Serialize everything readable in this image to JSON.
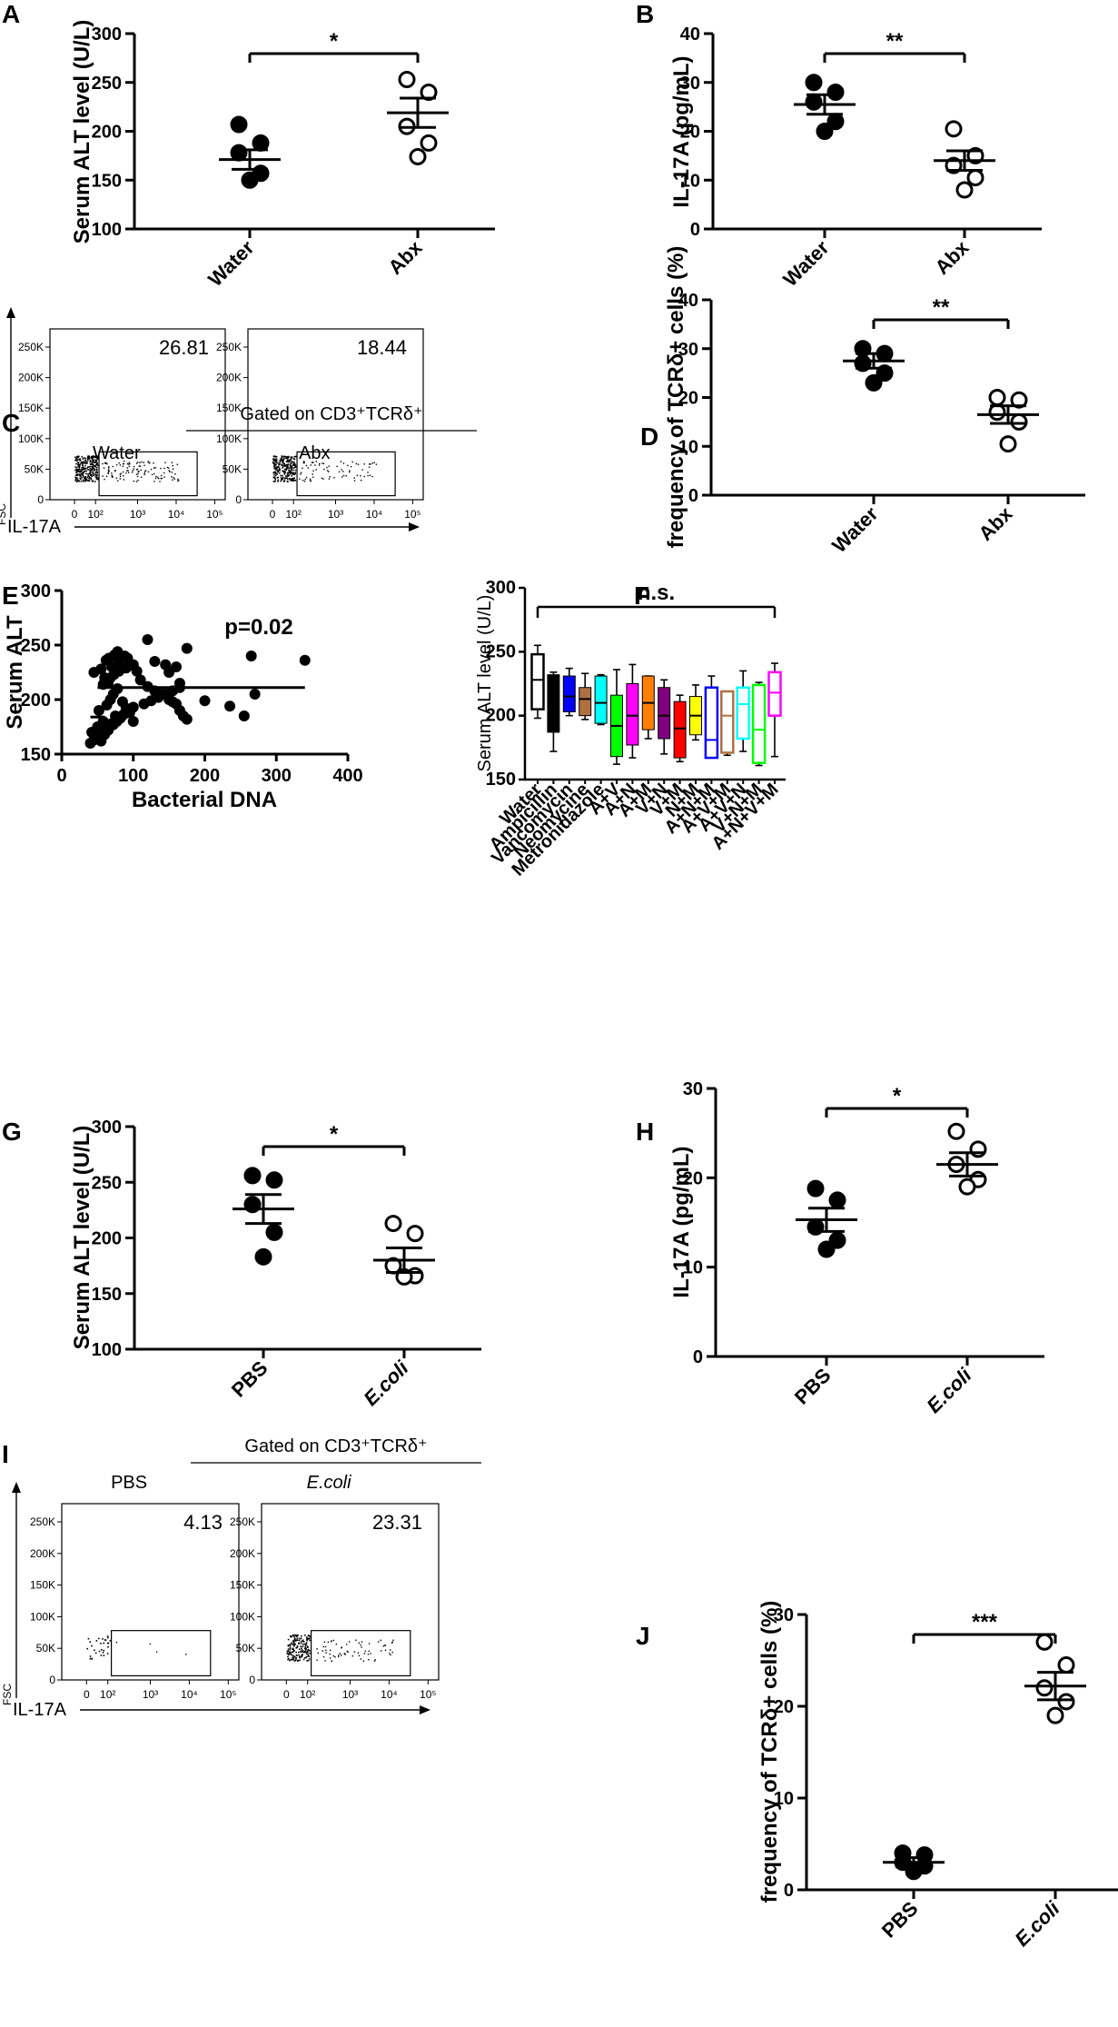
{
  "chart_data": [
    {
      "panel": "A",
      "type": "scatter",
      "ylabel": "Serum ALT level (U/L)",
      "ylim": [
        100,
        300
      ],
      "yticks": [
        100,
        150,
        200,
        250,
        300
      ],
      "categories": [
        "Water",
        "Abx"
      ],
      "significance": "*",
      "groups": [
        {
          "name": "Water",
          "filled": true,
          "points": [
            207,
            188,
            178,
            157,
            150
          ],
          "mean": 171,
          "sem": 10
        },
        {
          "name": "Abx",
          "filled": false,
          "points": [
            253,
            240,
            205,
            188,
            174
          ],
          "mean": 219,
          "sem": 15
        }
      ]
    },
    {
      "panel": "B",
      "type": "scatter",
      "ylabel": "IL-17A (pg/mL)",
      "ylim": [
        0,
        40
      ],
      "yticks": [
        0,
        10,
        20,
        30,
        40
      ],
      "categories": [
        "Water",
        "Abx"
      ],
      "significance": "**",
      "groups": [
        {
          "name": "Water",
          "filled": true,
          "points": [
            30,
            28,
            26,
            22,
            20
          ],
          "mean": 25.5,
          "sem": 2
        },
        {
          "name": "Abx",
          "filled": false,
          "points": [
            20.5,
            15,
            13,
            10.5,
            8
          ],
          "mean": 14,
          "sem": 2
        }
      ]
    },
    {
      "panel": "C",
      "type": "flow",
      "header": "Gated on CD3⁺TCRδ⁺",
      "xlabel": "IL-17A",
      "ylabel": "FSC",
      "yticks": [
        "0",
        "50K",
        "100K",
        "150K",
        "200K",
        "250K"
      ],
      "xticks": [
        "0",
        "10²",
        "10³",
        "10⁴",
        "10⁵"
      ],
      "plots": [
        {
          "name": "Water",
          "value": "26.81"
        },
        {
          "name": "Abx",
          "value": "18.44"
        }
      ]
    },
    {
      "panel": "D",
      "type": "scatter",
      "ylabel": "frequency of TCRδ+ cells (%)",
      "ylim": [
        0,
        40
      ],
      "yticks": [
        0,
        10,
        20,
        30,
        40
      ],
      "categories": [
        "Water",
        "Abx"
      ],
      "significance": "**",
      "groups": [
        {
          "name": "Water",
          "filled": true,
          "points": [
            30,
            29,
            27,
            25,
            23
          ],
          "mean": 27.5,
          "sem": 1.5
        },
        {
          "name": "Abx",
          "filled": false,
          "points": [
            20,
            19.5,
            17,
            15,
            10.5
          ],
          "mean": 16.5,
          "sem": 1.8
        }
      ]
    },
    {
      "panel": "E",
      "type": "scatter",
      "xlabel": "Bacterial DNA",
      "ylabel": "Serum ALT",
      "annotation": "p=0.02",
      "xlim": [
        0,
        400
      ],
      "ylim": [
        150,
        300
      ],
      "xticks": [
        0,
        100,
        200,
        300,
        400
      ],
      "yticks": [
        150,
        200,
        250,
        300
      ],
      "x": [
        42,
        48,
        55,
        50,
        60,
        65,
        58,
        70,
        75,
        52,
        63,
        68,
        72,
        78,
        85,
        90,
        95,
        100,
        45,
        55,
        60,
        65,
        70,
        80,
        88,
        92,
        98,
        105,
        110,
        120,
        130,
        140,
        150,
        155,
        160,
        165,
        170,
        175,
        120,
        130,
        145,
        150,
        160,
        165,
        175,
        200,
        235,
        255,
        265,
        270,
        340,
        40,
        45,
        50,
        55,
        60,
        62,
        67,
        72,
        77,
        82,
        86,
        90,
        95,
        100,
        115,
        125,
        135,
        145,
        155,
        165,
        58,
        63,
        68,
        73,
        80,
        90,
        100,
        62,
        66,
        74,
        78
      ],
      "y": [
        170,
        165,
        162,
        175,
        168,
        172,
        180,
        178,
        185,
        190,
        195,
        200,
        205,
        210,
        198,
        192,
        188,
        180,
        225,
        228,
        220,
        215,
        230,
        235,
        240,
        238,
        232,
        226,
        218,
        212,
        208,
        205,
        200,
        198,
        196,
        190,
        185,
        182,
        255,
        235,
        232,
        225,
        230,
        215,
        247,
        199,
        194,
        185,
        240,
        205,
        236,
        160,
        163,
        166,
        168,
        170,
        172,
        175,
        177,
        180,
        183,
        186,
        188,
        191,
        193,
        196,
        199,
        202,
        205,
        208,
        211,
        214,
        217,
        220,
        223,
        226,
        229,
        232,
        236,
        238,
        241,
        244
      ],
      "regression": {
        "x_start": 50,
        "x_end": 340,
        "y": 211
      },
      "short_segment": {
        "x_start": 40,
        "x_end": 60,
        "y": 184
      }
    },
    {
      "panel": "F",
      "type": "boxplot",
      "ylabel": "Serum ALT level (U/L)",
      "ylim": [
        150,
        300
      ],
      "yticks": [
        150,
        200,
        250,
        300
      ],
      "significance": "n.s.",
      "categories": [
        "Water",
        "Ampicillin",
        "Vancomycin",
        "Neomycine",
        "Metronidazole",
        "A+V",
        "A+N",
        "A+M",
        "V+N",
        "V+M",
        "N+M",
        "A+N+M",
        "A+V+M",
        "A+V+N",
        "V+N+M",
        "A+N+V+M"
      ],
      "boxes": [
        {
          "name": "Water",
          "color": "#000000",
          "filled": false,
          "min": 198,
          "q1": 205,
          "median": 228,
          "q3": 248,
          "max": 255
        },
        {
          "name": "Ampicillin",
          "color": "#000000",
          "filled": true,
          "min": 172,
          "q1": 187,
          "median": 210,
          "q3": 232,
          "max": 234
        },
        {
          "name": "Vancomycin",
          "color": "#0000ff",
          "filled": true,
          "min": 200,
          "q1": 203,
          "median": 215,
          "q3": 231,
          "max": 237
        },
        {
          "name": "Neomycine",
          "color": "#b07040",
          "filled": true,
          "min": 197,
          "q1": 200,
          "median": 213,
          "q3": 222,
          "max": 233
        },
        {
          "name": "Metronidazole",
          "color": "#00ffff",
          "filled": true,
          "min": 193,
          "q1": 194,
          "median": 210,
          "q3": 231,
          "max": 232
        },
        {
          "name": "A+V",
          "color": "#00ff00",
          "filled": true,
          "min": 162,
          "q1": 168,
          "median": 192,
          "q3": 216,
          "max": 236
        },
        {
          "name": "A+N",
          "color": "#ff00ff",
          "filled": true,
          "min": 167,
          "q1": 177,
          "median": 200,
          "q3": 225,
          "max": 240
        },
        {
          "name": "A+M",
          "color": "#ff8000",
          "filled": true,
          "min": 182,
          "q1": 189,
          "median": 210,
          "q3": 231,
          "max": 231
        },
        {
          "name": "V+N",
          "color": "#800080",
          "filled": true,
          "min": 170,
          "q1": 182,
          "median": 200,
          "q3": 222,
          "max": 228
        },
        {
          "name": "V+M",
          "color": "#ff0000",
          "filled": true,
          "min": 164,
          "q1": 167,
          "median": 190,
          "q3": 211,
          "max": 216
        },
        {
          "name": "N+M",
          "color": "#ffff00",
          "filled": true,
          "min": 181,
          "q1": 185,
          "median": 200,
          "q3": 215,
          "max": 224
        },
        {
          "name": "A+N+M",
          "color": "#0000ff",
          "filled": false,
          "min": 167,
          "q1": 167,
          "median": 181,
          "q3": 222,
          "max": 231
        },
        {
          "name": "A+V+M",
          "color": "#b07040",
          "filled": false,
          "min": 169,
          "q1": 171,
          "median": 200,
          "q3": 219,
          "max": 219
        },
        {
          "name": "A+V+N",
          "color": "#00ffff",
          "filled": false,
          "min": 172,
          "q1": 182,
          "median": 209,
          "q3": 222,
          "max": 235
        },
        {
          "name": "V+N+M",
          "color": "#00ff00",
          "filled": false,
          "min": 161,
          "q1": 163,
          "median": 189,
          "q3": 224,
          "max": 226
        },
        {
          "name": "A+N+V+M",
          "color": "#ff00ff",
          "filled": false,
          "min": 168,
          "q1": 200,
          "median": 218,
          "q3": 234,
          "max": 241
        }
      ]
    },
    {
      "panel": "G",
      "type": "scatter",
      "ylabel": "Serum ALT level (U/L)",
      "ylim": [
        100,
        300
      ],
      "yticks": [
        100,
        150,
        200,
        250,
        300
      ],
      "categories": [
        "PBS",
        "E.coli"
      ],
      "significance": "*",
      "groups": [
        {
          "name": "PBS",
          "filled": true,
          "points": [
            256,
            252,
            230,
            205,
            183
          ],
          "mean": 226,
          "sem": 13
        },
        {
          "name": "E.coli",
          "filled": false,
          "points": [
            213,
            204,
            175,
            166,
            165
          ],
          "mean": 180,
          "sem": 11
        }
      ]
    },
    {
      "panel": "H",
      "type": "scatter",
      "ylabel": "IL-17A (pg/mL)",
      "ylim": [
        0,
        30
      ],
      "yticks": [
        0,
        10,
        20,
        30
      ],
      "categories": [
        "PBS",
        "E.coli"
      ],
      "significance": "*",
      "groups": [
        {
          "name": "PBS",
          "filled": true,
          "points": [
            18.8,
            17.5,
            14.5,
            13,
            12
          ],
          "mean": 15.3,
          "sem": 1.3
        },
        {
          "name": "E.coli",
          "filled": false,
          "points": [
            25.2,
            23.2,
            21.5,
            19.8,
            19
          ],
          "mean": 21.5,
          "sem": 1.3
        }
      ]
    },
    {
      "panel": "I",
      "type": "flow",
      "header": "Gated on CD3⁺TCRδ⁺",
      "xlabel": "IL-17A",
      "ylabel": "FSC",
      "yticks": [
        "0",
        "50K",
        "100K",
        "150K",
        "200K",
        "250K"
      ],
      "xticks": [
        "0",
        "10²",
        "10³",
        "10⁴",
        "10⁵"
      ],
      "plots": [
        {
          "name": "PBS",
          "value": "4.13"
        },
        {
          "name": "E.coli",
          "value": "23.31"
        }
      ]
    },
    {
      "panel": "J",
      "type": "scatter",
      "ylabel": "frequency of TCRδ+ cells (%)",
      "ylim": [
        0,
        30
      ],
      "yticks": [
        0,
        10,
        20,
        30
      ],
      "categories": [
        "PBS",
        "E.coli"
      ],
      "significance": "***",
      "groups": [
        {
          "name": "PBS",
          "filled": true,
          "points": [
            4,
            3.8,
            3,
            2.6,
            2
          ],
          "mean": 3,
          "sem": 0.5
        },
        {
          "name": "E.coli",
          "filled": false,
          "points": [
            27,
            24.5,
            22,
            20.5,
            19
          ],
          "mean": 22.2,
          "sem": 1.5
        }
      ]
    }
  ]
}
